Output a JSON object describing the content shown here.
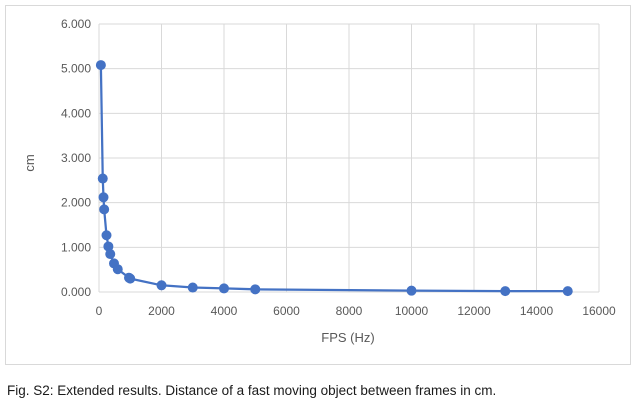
{
  "chart_data": {
    "type": "scatter",
    "xlabel": "FPS (Hz)",
    "ylabel": "cm",
    "xlim": [
      0,
      16000
    ],
    "ylim": [
      0,
      6
    ],
    "x_ticks": [
      "0",
      "2000",
      "4000",
      "6000",
      "8000",
      "10000",
      "12000",
      "14000",
      "16000"
    ],
    "y_ticks": [
      "0.000",
      "1.000",
      "2.000",
      "3.000",
      "4.000",
      "5.000",
      "6.000"
    ],
    "grid": true,
    "legend": "none",
    "line_color": "#4472c4",
    "series": [
      {
        "points": [
          {
            "x": 60,
            "y": 5.08
          },
          {
            "x": 120,
            "y": 2.54
          },
          {
            "x": 144,
            "y": 2.12
          },
          {
            "x": 165,
            "y": 1.85
          },
          {
            "x": 240,
            "y": 1.27
          },
          {
            "x": 300,
            "y": 1.02
          },
          {
            "x": 360,
            "y": 0.85
          },
          {
            "x": 480,
            "y": 0.64
          },
          {
            "x": 600,
            "y": 0.51
          },
          {
            "x": 960,
            "y": 0.32
          },
          {
            "x": 1000,
            "y": 0.3
          },
          {
            "x": 2000,
            "y": 0.15
          },
          {
            "x": 3000,
            "y": 0.1
          },
          {
            "x": 4000,
            "y": 0.08
          },
          {
            "x": 5000,
            "y": 0.06
          },
          {
            "x": 10000,
            "y": 0.03
          },
          {
            "x": 13000,
            "y": 0.02
          },
          {
            "x": 15000,
            "y": 0.02
          }
        ]
      }
    ]
  },
  "caption": "Fig. S2: Extended results. Distance of a fast moving object between frames in cm."
}
